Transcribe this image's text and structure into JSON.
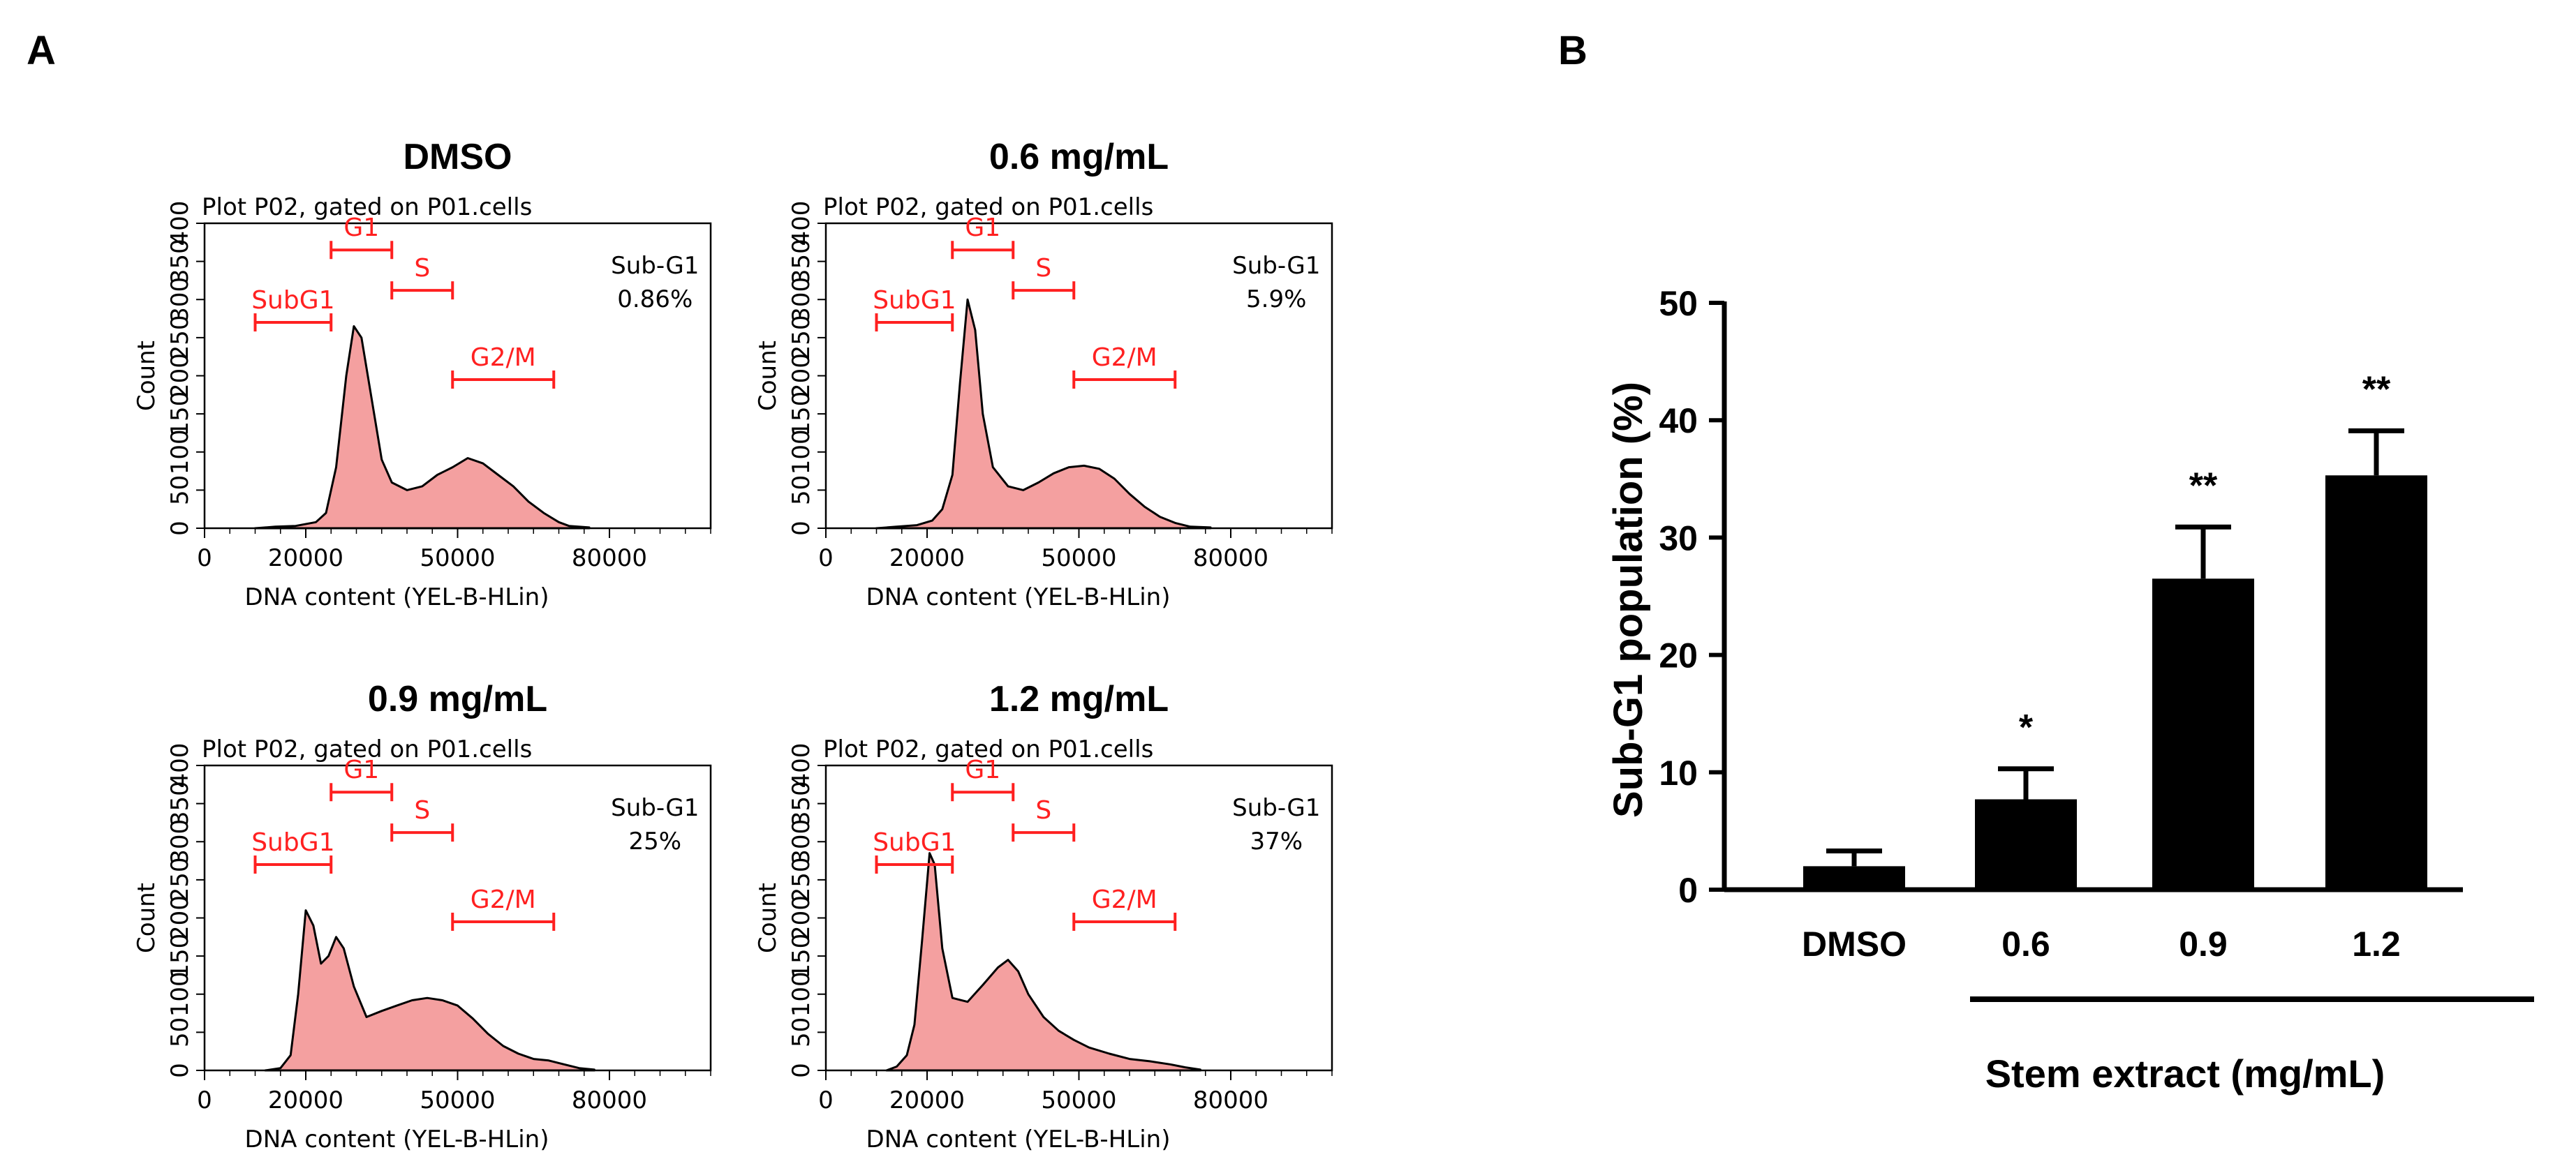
{
  "figure": {
    "panel_a_label": "A",
    "panel_b_label": "B",
    "colors": {
      "fill": "#f4a0a0",
      "gate": "#ff2020",
      "bar": "#000000",
      "axis": "#000000"
    }
  },
  "chart_data": [
    {
      "type": "area",
      "panel": "A",
      "title": "DMSO",
      "subtitle": "Plot P02, gated on P01.cells",
      "xlabel": "DNA content (YEL-B-HLin)",
      "ylabel": "Count",
      "xlim": [
        0,
        100000
      ],
      "ylim": [
        0,
        400
      ],
      "xticks": [
        0,
        20000,
        50000,
        80000
      ],
      "yticks": [
        0,
        50,
        100,
        150,
        200,
        250,
        300,
        350,
        400
      ],
      "annotation_label": "Sub-G1",
      "annotation_value": "0.86%",
      "gates": [
        {
          "name": "SubG1",
          "x0": 10000,
          "x1": 25000,
          "y": 270
        },
        {
          "name": "G1",
          "x0": 25000,
          "x1": 37000,
          "y": 365
        },
        {
          "name": "S",
          "x0": 37000,
          "x1": 49000,
          "y": 312
        },
        {
          "name": "G2/M",
          "x0": 49000,
          "x1": 69000,
          "y": 195
        }
      ],
      "histogram": [
        [
          10000,
          0
        ],
        [
          14000,
          2
        ],
        [
          18000,
          3
        ],
        [
          22000,
          8
        ],
        [
          24000,
          20
        ],
        [
          26000,
          80
        ],
        [
          28000,
          200
        ],
        [
          29500,
          265
        ],
        [
          31000,
          250
        ],
        [
          33000,
          170
        ],
        [
          35000,
          90
        ],
        [
          37000,
          60
        ],
        [
          40000,
          50
        ],
        [
          43000,
          55
        ],
        [
          46000,
          70
        ],
        [
          49000,
          80
        ],
        [
          52000,
          92
        ],
        [
          55000,
          85
        ],
        [
          58000,
          70
        ],
        [
          61000,
          55
        ],
        [
          64000,
          35
        ],
        [
          67000,
          20
        ],
        [
          70000,
          8
        ],
        [
          72000,
          3
        ],
        [
          76000,
          1
        ]
      ]
    },
    {
      "type": "area",
      "panel": "A",
      "title": "0.6 mg/mL",
      "subtitle": "Plot P02, gated on P01.cells",
      "xlabel": "DNA content (YEL-B-HLin)",
      "ylabel": "Count",
      "xlim": [
        0,
        100000
      ],
      "ylim": [
        0,
        400
      ],
      "xticks": [
        0,
        20000,
        50000,
        80000
      ],
      "yticks": [
        0,
        50,
        100,
        150,
        200,
        250,
        300,
        350,
        400
      ],
      "annotation_label": "Sub-G1",
      "annotation_value": "5.9%",
      "gates": [
        {
          "name": "SubG1",
          "x0": 10000,
          "x1": 25000,
          "y": 270
        },
        {
          "name": "G1",
          "x0": 25000,
          "x1": 37000,
          "y": 365
        },
        {
          "name": "S",
          "x0": 37000,
          "x1": 49000,
          "y": 312
        },
        {
          "name": "G2/M",
          "x0": 49000,
          "x1": 69000,
          "y": 195
        }
      ],
      "histogram": [
        [
          10000,
          0
        ],
        [
          14000,
          2
        ],
        [
          18000,
          4
        ],
        [
          21000,
          10
        ],
        [
          23000,
          25
        ],
        [
          25000,
          70
        ],
        [
          26500,
          190
        ],
        [
          28000,
          300
        ],
        [
          29500,
          260
        ],
        [
          31000,
          150
        ],
        [
          33000,
          80
        ],
        [
          36000,
          55
        ],
        [
          39000,
          50
        ],
        [
          42000,
          60
        ],
        [
          45000,
          72
        ],
        [
          48000,
          80
        ],
        [
          51000,
          82
        ],
        [
          54000,
          78
        ],
        [
          57000,
          65
        ],
        [
          60000,
          45
        ],
        [
          63000,
          28
        ],
        [
          66000,
          15
        ],
        [
          69000,
          7
        ],
        [
          72000,
          2
        ],
        [
          76000,
          1
        ]
      ]
    },
    {
      "type": "area",
      "panel": "A",
      "title": "0.9 mg/mL",
      "subtitle": "Plot P02, gated on P01.cells",
      "xlabel": "DNA content (YEL-B-HLin)",
      "ylabel": "Count",
      "xlim": [
        0,
        100000
      ],
      "ylim": [
        0,
        400
      ],
      "xticks": [
        0,
        20000,
        50000,
        80000
      ],
      "yticks": [
        0,
        50,
        100,
        150,
        200,
        250,
        300,
        350,
        400
      ],
      "annotation_label": "Sub-G1",
      "annotation_value": "25%",
      "gates": [
        {
          "name": "SubG1",
          "x0": 10000,
          "x1": 25000,
          "y": 270
        },
        {
          "name": "G1",
          "x0": 25000,
          "x1": 37000,
          "y": 365
        },
        {
          "name": "S",
          "x0": 37000,
          "x1": 49000,
          "y": 312
        },
        {
          "name": "G2/M",
          "x0": 49000,
          "x1": 69000,
          "y": 195
        }
      ],
      "histogram": [
        [
          12000,
          0
        ],
        [
          15000,
          3
        ],
        [
          17000,
          20
        ],
        [
          18500,
          100
        ],
        [
          20000,
          210
        ],
        [
          21500,
          190
        ],
        [
          23000,
          140
        ],
        [
          24500,
          150
        ],
        [
          26000,
          175
        ],
        [
          27500,
          160
        ],
        [
          29500,
          110
        ],
        [
          32000,
          70
        ],
        [
          35000,
          78
        ],
        [
          38000,
          85
        ],
        [
          41000,
          92
        ],
        [
          44000,
          95
        ],
        [
          47000,
          92
        ],
        [
          50000,
          85
        ],
        [
          53000,
          68
        ],
        [
          56000,
          48
        ],
        [
          59000,
          32
        ],
        [
          62000,
          22
        ],
        [
          65000,
          15
        ],
        [
          68000,
          13
        ],
        [
          71000,
          8
        ],
        [
          74000,
          3
        ],
        [
          77000,
          1
        ]
      ]
    },
    {
      "type": "area",
      "panel": "A",
      "title": "1.2 mg/mL",
      "subtitle": "Plot P02, gated on P01.cells",
      "xlabel": "DNA content (YEL-B-HLin)",
      "ylabel": "Count",
      "xlim": [
        0,
        100000
      ],
      "ylim": [
        0,
        400
      ],
      "xticks": [
        0,
        20000,
        50000,
        80000
      ],
      "yticks": [
        0,
        50,
        100,
        150,
        200,
        250,
        300,
        350,
        400
      ],
      "annotation_label": "Sub-G1",
      "annotation_value": "37%",
      "gates": [
        {
          "name": "SubG1",
          "x0": 10000,
          "x1": 25000,
          "y": 270
        },
        {
          "name": "G1",
          "x0": 25000,
          "x1": 37000,
          "y": 365
        },
        {
          "name": "S",
          "x0": 37000,
          "x1": 49000,
          "y": 312
        },
        {
          "name": "G2/M",
          "x0": 49000,
          "x1": 69000,
          "y": 195
        }
      ],
      "histogram": [
        [
          12000,
          0
        ],
        [
          14000,
          5
        ],
        [
          16000,
          20
        ],
        [
          17500,
          60
        ],
        [
          19000,
          170
        ],
        [
          20500,
          285
        ],
        [
          21500,
          270
        ],
        [
          23000,
          160
        ],
        [
          25000,
          95
        ],
        [
          28000,
          90
        ],
        [
          31000,
          112
        ],
        [
          34000,
          135
        ],
        [
          36000,
          145
        ],
        [
          38000,
          130
        ],
        [
          40000,
          100
        ],
        [
          43000,
          70
        ],
        [
          46000,
          52
        ],
        [
          49000,
          40
        ],
        [
          52000,
          30
        ],
        [
          56000,
          22
        ],
        [
          60000,
          15
        ],
        [
          64000,
          12
        ],
        [
          68000,
          8
        ],
        [
          71000,
          4
        ],
        [
          74000,
          1
        ]
      ]
    },
    {
      "type": "bar",
      "panel": "B",
      "categories": [
        "DMSO",
        "0.6",
        "0.9",
        "1.2"
      ],
      "values": [
        2,
        7.7,
        26.5,
        35.3
      ],
      "errors": [
        1.3,
        2.6,
        4.4,
        3.8
      ],
      "significance": [
        "",
        "*",
        "**",
        "**"
      ],
      "ylabel": "Sub-G1 population (%)",
      "xlabel": "Stem extract (mg/mL)",
      "ylim": [
        0,
        50
      ],
      "yticks": [
        0,
        10,
        20,
        30,
        40,
        50
      ],
      "ytick_labels": [
        "0",
        "10",
        "20",
        "30",
        "40",
        "50"
      ]
    }
  ]
}
